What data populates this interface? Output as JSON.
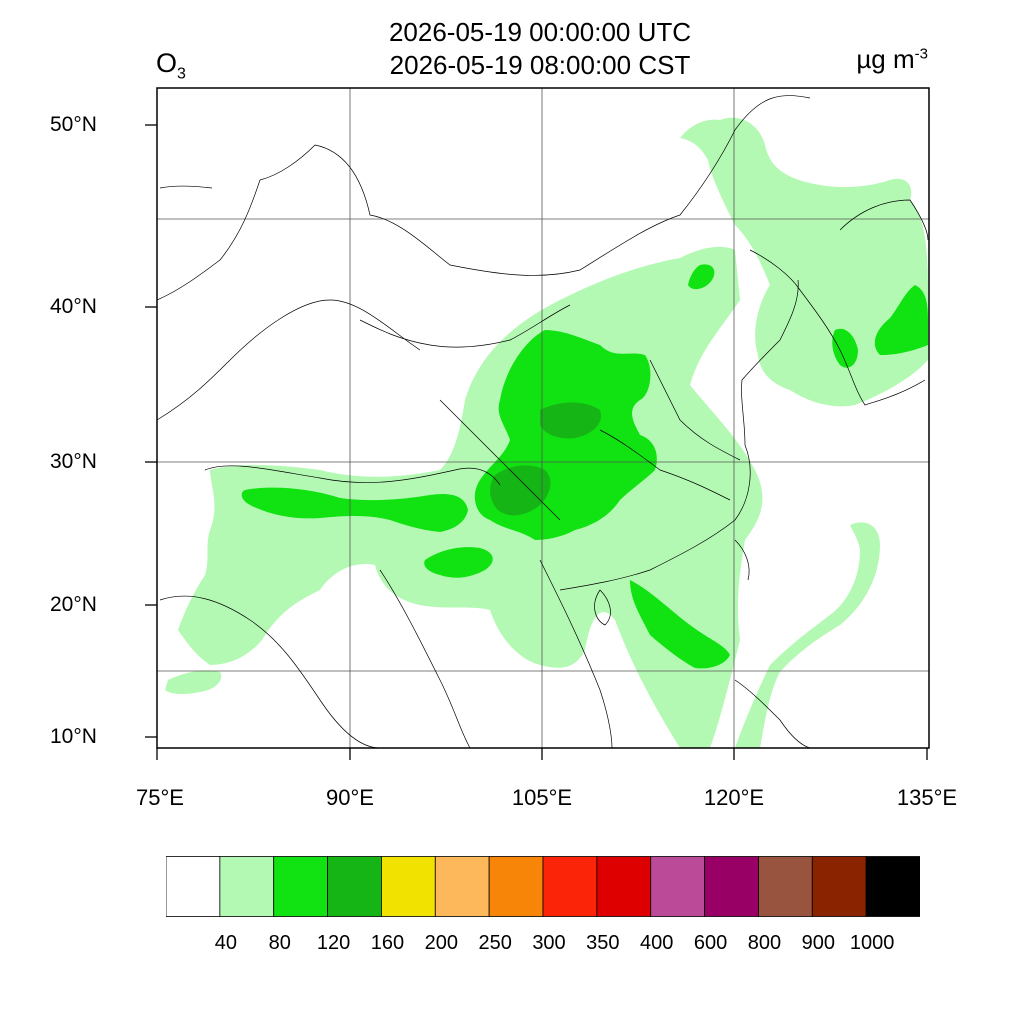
{
  "title": {
    "utc": "2026-05-19 00:00:00 UTC",
    "cst": "2026-05-19 08:00:00 CST"
  },
  "species": {
    "main": "O",
    "sub": "3"
  },
  "units": {
    "main": "µg m",
    "exp": "-3"
  },
  "map": {
    "extent": {
      "lon": [
        75,
        135
      ],
      "lat": [
        9,
        52
      ]
    },
    "lat_ticks": [
      {
        "value": 50,
        "label": "50°N"
      },
      {
        "value": 40,
        "label": "40°N"
      },
      {
        "value": 30,
        "label": "30°N"
      },
      {
        "value": 20,
        "label": "20°N"
      },
      {
        "value": 10,
        "label": "10°N"
      }
    ],
    "lon_ticks": [
      {
        "value": 75,
        "label": "75°E"
      },
      {
        "value": 90,
        "label": "90°E"
      },
      {
        "value": 105,
        "label": "105°E"
      },
      {
        "value": 120,
        "label": "120°E"
      },
      {
        "value": 135,
        "label": "135°E"
      }
    ]
  },
  "colorbar": {
    "colors": [
      "#ffffff",
      "#b3f9b3",
      "#11e211",
      "#15b515",
      "#f2e200",
      "#fdb85c",
      "#f78507",
      "#fc2408",
      "#de0000",
      "#bb4a99",
      "#990066",
      "#99543f",
      "#8a2300",
      "#000000"
    ],
    "labels": [
      "40",
      "80",
      "120",
      "160",
      "200",
      "250",
      "300",
      "350",
      "400",
      "600",
      "800",
      "900",
      "1000"
    ]
  }
}
